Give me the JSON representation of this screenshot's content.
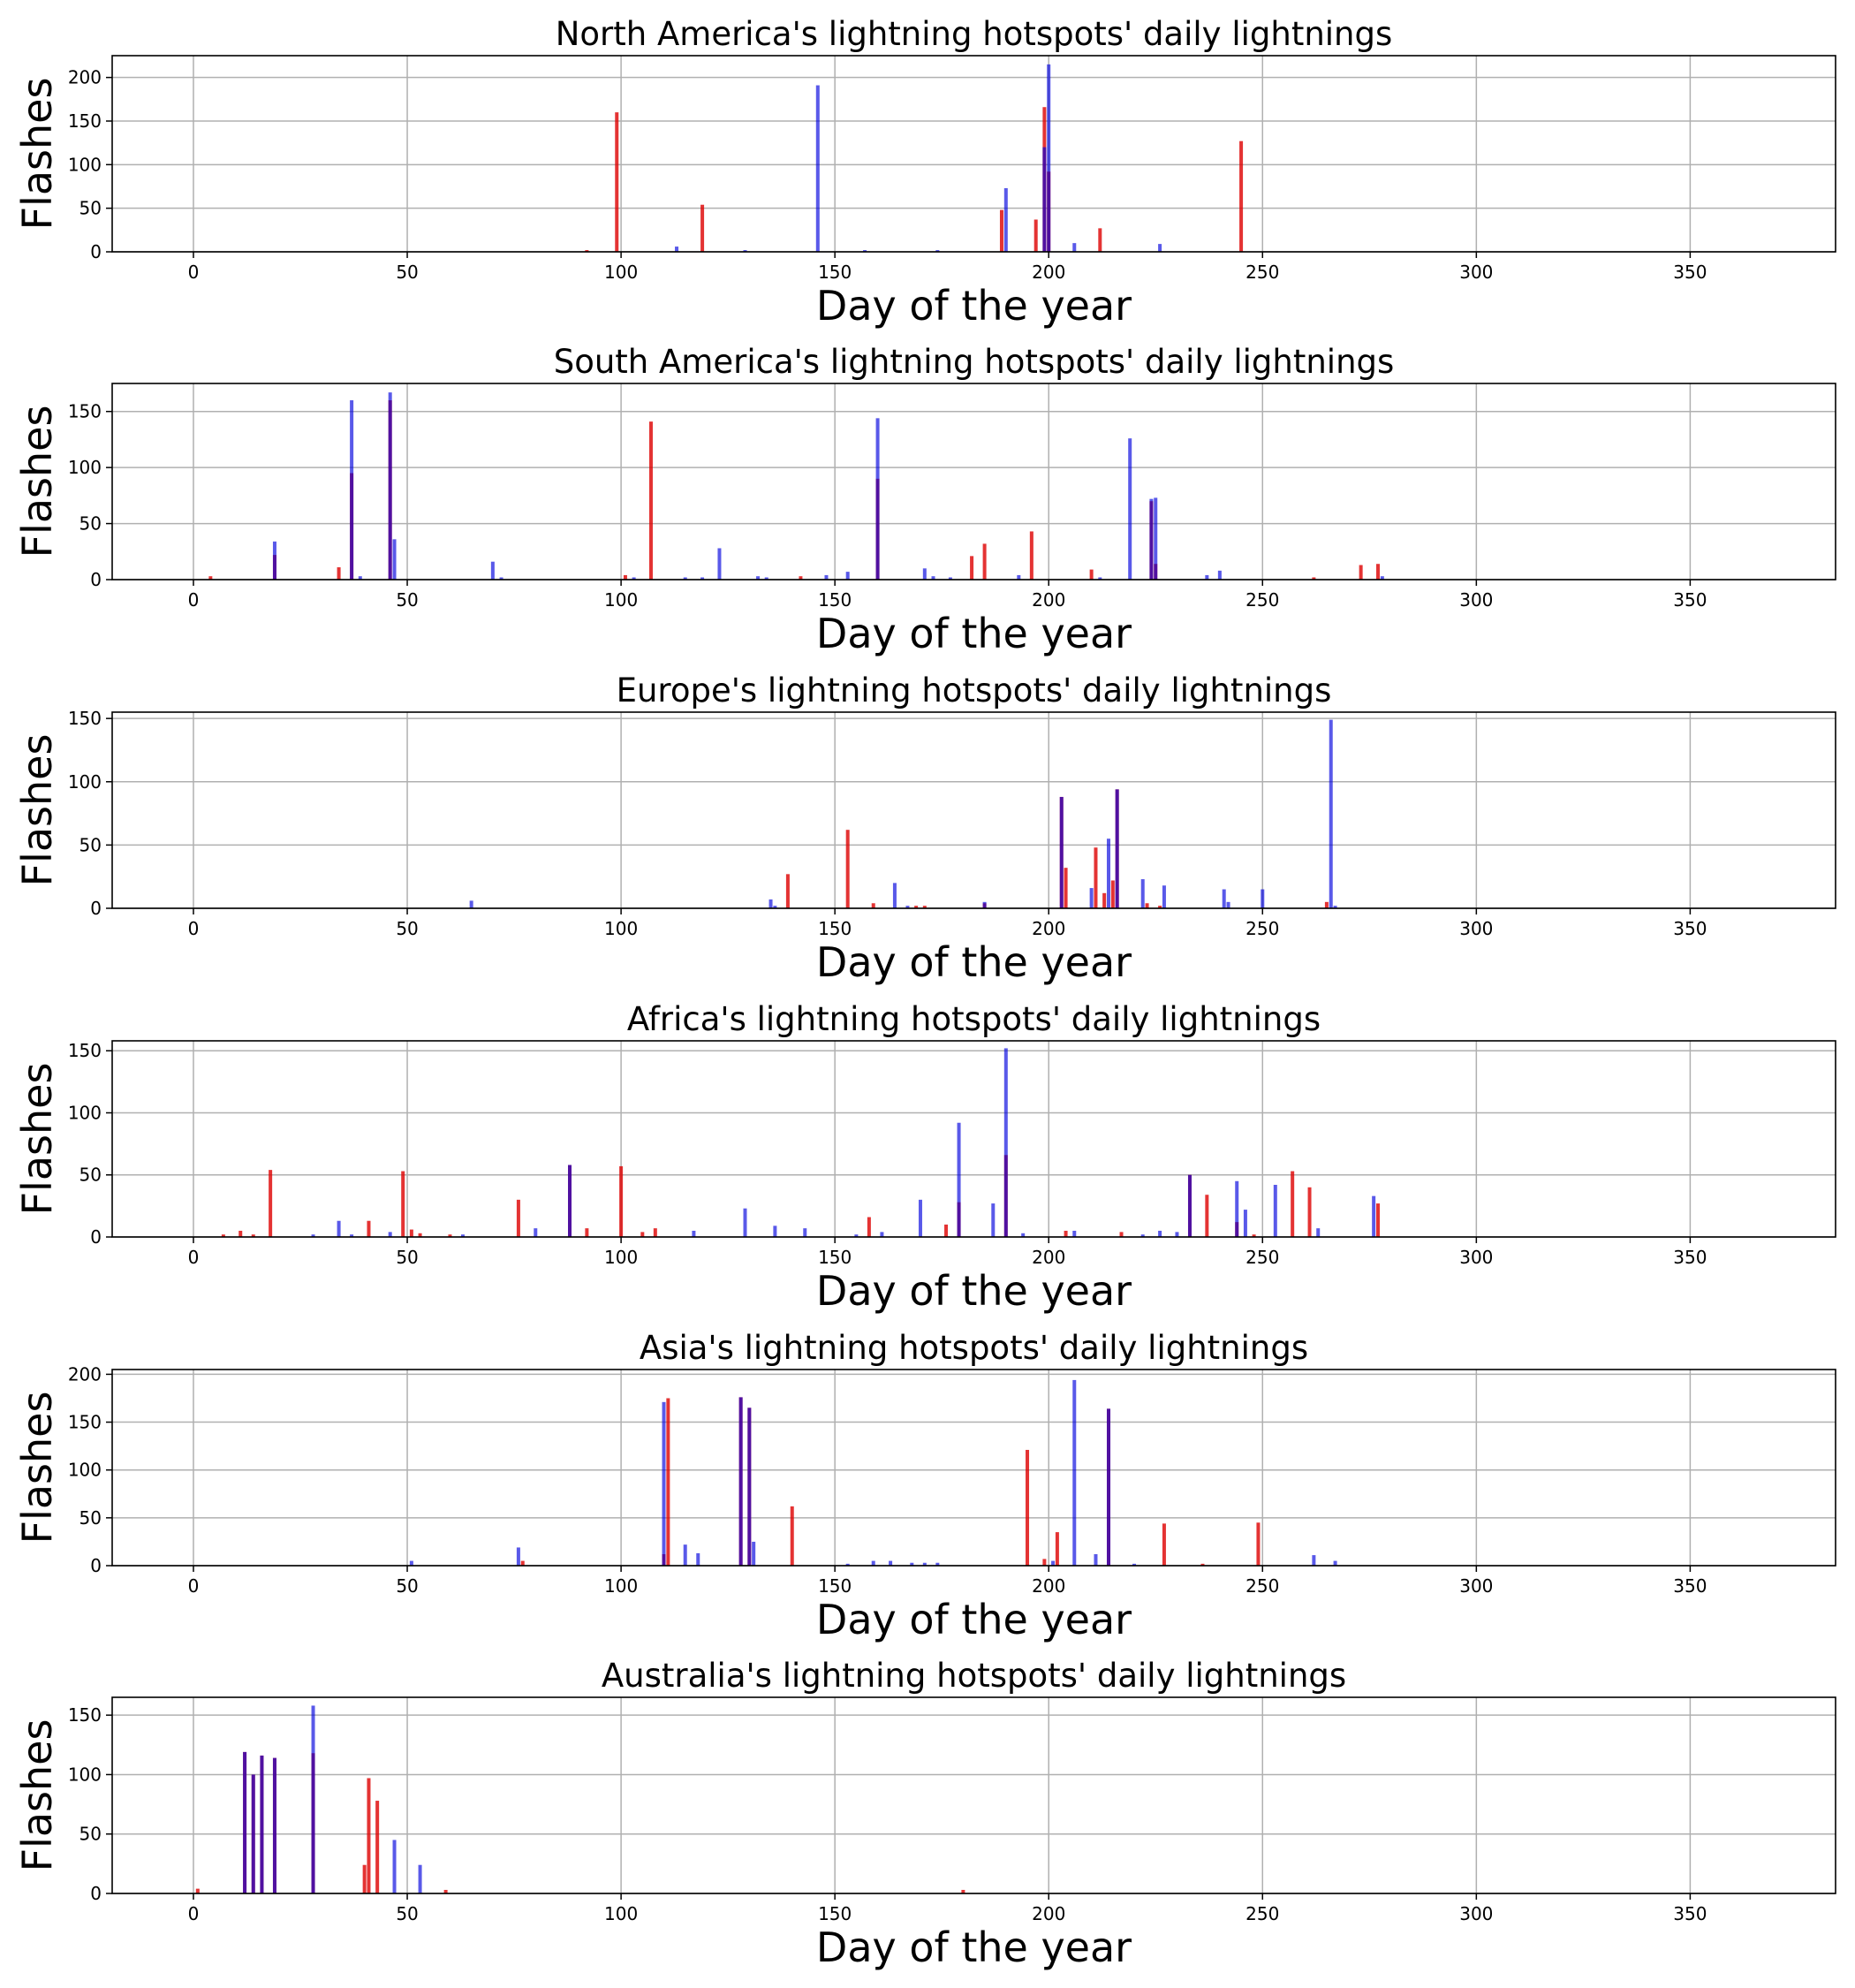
{
  "colors": {
    "red": "#dd0000",
    "blue": "#0000dd",
    "grid": "#b0b0b0",
    "axis": "#000000"
  },
  "chart_data": [
    {
      "type": "bar",
      "title": "North America's lightning hotspots' daily lightnings",
      "xlabel": "Day of the year",
      "ylabel": "Flashes",
      "xlim": [
        -19,
        384
      ],
      "ylim": [
        0,
        225
      ],
      "xticks": [
        "0",
        "50",
        "100",
        "150",
        "200",
        "250",
        "300",
        "350"
      ],
      "yticks": [
        "0",
        "50",
        "100",
        "150",
        "200"
      ],
      "grid": true,
      "series": [
        {
          "color": "#dd0000",
          "x": [
            92,
            99,
            119,
            189,
            197,
            199,
            200,
            212,
            245
          ],
          "values": [
            2,
            160,
            54,
            48,
            37,
            166,
            92,
            27,
            127
          ]
        },
        {
          "color": "#0000dd",
          "x": [
            113,
            129,
            146,
            157,
            174,
            190,
            199,
            200,
            206,
            226
          ],
          "values": [
            6,
            2,
            191,
            2,
            2,
            73,
            120,
            215,
            10,
            9
          ]
        }
      ]
    },
    {
      "type": "bar",
      "title": "South America's lightning hotspots' daily lightnings",
      "xlabel": "Day of the year",
      "ylabel": "Flashes",
      "xlim": [
        -19,
        384
      ],
      "ylim": [
        0,
        175
      ],
      "xticks": [
        "0",
        "50",
        "100",
        "150",
        "200",
        "250",
        "300",
        "350"
      ],
      "yticks": [
        "0",
        "50",
        "100",
        "150"
      ],
      "grid": true,
      "series": [
        {
          "color": "#dd0000",
          "x": [
            4,
            19,
            34,
            37,
            46,
            101,
            107,
            142,
            160,
            182,
            185,
            196,
            210,
            224,
            225,
            262,
            273,
            277
          ],
          "values": [
            3,
            22,
            11,
            95,
            160,
            4,
            141,
            3,
            90,
            21,
            32,
            43,
            9,
            70,
            14,
            2,
            13,
            14
          ]
        },
        {
          "color": "#0000dd",
          "x": [
            19,
            37,
            39,
            46,
            47,
            70,
            72,
            103,
            115,
            119,
            123,
            132,
            134,
            148,
            153,
            160,
            171,
            173,
            177,
            193,
            212,
            219,
            224,
            225,
            237,
            240,
            278
          ],
          "values": [
            34,
            160,
            3,
            167,
            36,
            16,
            2,
            2,
            2,
            2,
            28,
            3,
            2,
            4,
            7,
            144,
            10,
            3,
            2,
            4,
            2,
            126,
            72,
            73,
            4,
            8,
            3
          ]
        }
      ]
    },
    {
      "type": "bar",
      "title": "Europe's lightning hotspots' daily lightnings",
      "xlabel": "Day of the year",
      "ylabel": "Flashes",
      "xlim": [
        -19,
        384
      ],
      "ylim": [
        0,
        155
      ],
      "xticks": [
        "0",
        "50",
        "100",
        "150",
        "200",
        "250",
        "300",
        "350"
      ],
      "yticks": [
        "0",
        "50",
        "100",
        "150"
      ],
      "grid": true,
      "series": [
        {
          "color": "#dd0000",
          "x": [
            139,
            153,
            159,
            169,
            171,
            185,
            203,
            204,
            211,
            213,
            215,
            216,
            223,
            226,
            265
          ],
          "values": [
            27,
            62,
            4,
            2,
            2,
            4,
            88,
            32,
            48,
            12,
            22,
            94,
            4,
            2,
            5
          ]
        },
        {
          "color": "#0000dd",
          "x": [
            65,
            135,
            136,
            164,
            167,
            185,
            203,
            210,
            214,
            216,
            222,
            227,
            241,
            242,
            250,
            266,
            267
          ],
          "values": [
            6,
            7,
            2,
            20,
            2,
            5,
            88,
            16,
            55,
            94,
            23,
            18,
            15,
            5,
            15,
            149,
            2
          ]
        }
      ]
    },
    {
      "type": "bar",
      "title": "Africa's lightning hotspots' daily lightnings",
      "xlabel": "Day of the year",
      "ylabel": "Flashes",
      "xlim": [
        -19,
        384
      ],
      "ylim": [
        0,
        158
      ],
      "xticks": [
        "0",
        "50",
        "100",
        "150",
        "200",
        "250",
        "300",
        "350"
      ],
      "yticks": [
        "0",
        "50",
        "100",
        "150"
      ],
      "grid": true,
      "series": [
        {
          "color": "#dd0000",
          "x": [
            7,
            11,
            14,
            18,
            41,
            49,
            51,
            53,
            60,
            76,
            88,
            92,
            100,
            105,
            108,
            158,
            176,
            179,
            190,
            204,
            217,
            233,
            237,
            244,
            248,
            257,
            261,
            277
          ],
          "values": [
            2,
            5,
            2,
            54,
            13,
            53,
            6,
            3,
            2,
            30,
            58,
            7,
            57,
            4,
            7,
            16,
            10,
            28,
            66,
            5,
            4,
            50,
            34,
            12,
            2,
            53,
            40,
            27
          ]
        },
        {
          "color": "#0000dd",
          "x": [
            28,
            34,
            37,
            46,
            63,
            80,
            88,
            117,
            129,
            136,
            143,
            155,
            161,
            170,
            179,
            187,
            190,
            194,
            206,
            222,
            226,
            230,
            233,
            244,
            246,
            253,
            263,
            276
          ],
          "values": [
            2,
            13,
            2,
            4,
            2,
            7,
            58,
            5,
            23,
            9,
            7,
            2,
            4,
            30,
            92,
            27,
            152,
            3,
            5,
            2,
            5,
            4,
            50,
            45,
            22,
            42,
            7,
            33
          ]
        }
      ]
    },
    {
      "type": "bar",
      "title": "Asia's lightning hotspots' daily lightnings",
      "xlabel": "Day of the year",
      "ylabel": "Flashes",
      "xlim": [
        -19,
        384
      ],
      "ylim": [
        0,
        205
      ],
      "xticks": [
        "0",
        "50",
        "100",
        "150",
        "200",
        "250",
        "300",
        "350"
      ],
      "yticks": [
        "0",
        "50",
        "100",
        "150",
        "200"
      ],
      "grid": true,
      "series": [
        {
          "color": "#dd0000",
          "x": [
            77,
            110,
            111,
            128,
            130,
            140,
            195,
            199,
            202,
            214,
            227,
            236,
            249
          ],
          "values": [
            5,
            12,
            175,
            176,
            165,
            62,
            121,
            7,
            35,
            164,
            44,
            2,
            45
          ]
        },
        {
          "color": "#0000dd",
          "x": [
            51,
            76,
            110,
            115,
            118,
            128,
            130,
            131,
            153,
            159,
            163,
            168,
            171,
            174,
            201,
            206,
            211,
            214,
            220,
            262,
            267
          ],
          "values": [
            5,
            19,
            171,
            22,
            13,
            176,
            165,
            25,
            2,
            5,
            5,
            3,
            3,
            3,
            5,
            194,
            12,
            164,
            2,
            11,
            5
          ]
        }
      ]
    },
    {
      "type": "bar",
      "title": "Australia's lightning hotspots' daily lightnings",
      "xlabel": "Day of the year",
      "ylabel": "Flashes",
      "xlim": [
        -19,
        384
      ],
      "ylim": [
        0,
        165
      ],
      "xticks": [
        "0",
        "50",
        "100",
        "150",
        "200",
        "250",
        "300",
        "350"
      ],
      "yticks": [
        "0",
        "50",
        "100",
        "150"
      ],
      "grid": true,
      "series": [
        {
          "color": "#dd0000",
          "x": [
            1,
            12,
            14,
            16,
            19,
            28,
            40,
            41,
            43,
            59,
            180
          ],
          "values": [
            4,
            119,
            100,
            116,
            114,
            118,
            24,
            97,
            78,
            3,
            3
          ]
        },
        {
          "color": "#0000dd",
          "x": [
            12,
            14,
            16,
            19,
            28,
            47,
            53
          ],
          "values": [
            119,
            100,
            116,
            114,
            158,
            45,
            24
          ]
        }
      ]
    }
  ]
}
